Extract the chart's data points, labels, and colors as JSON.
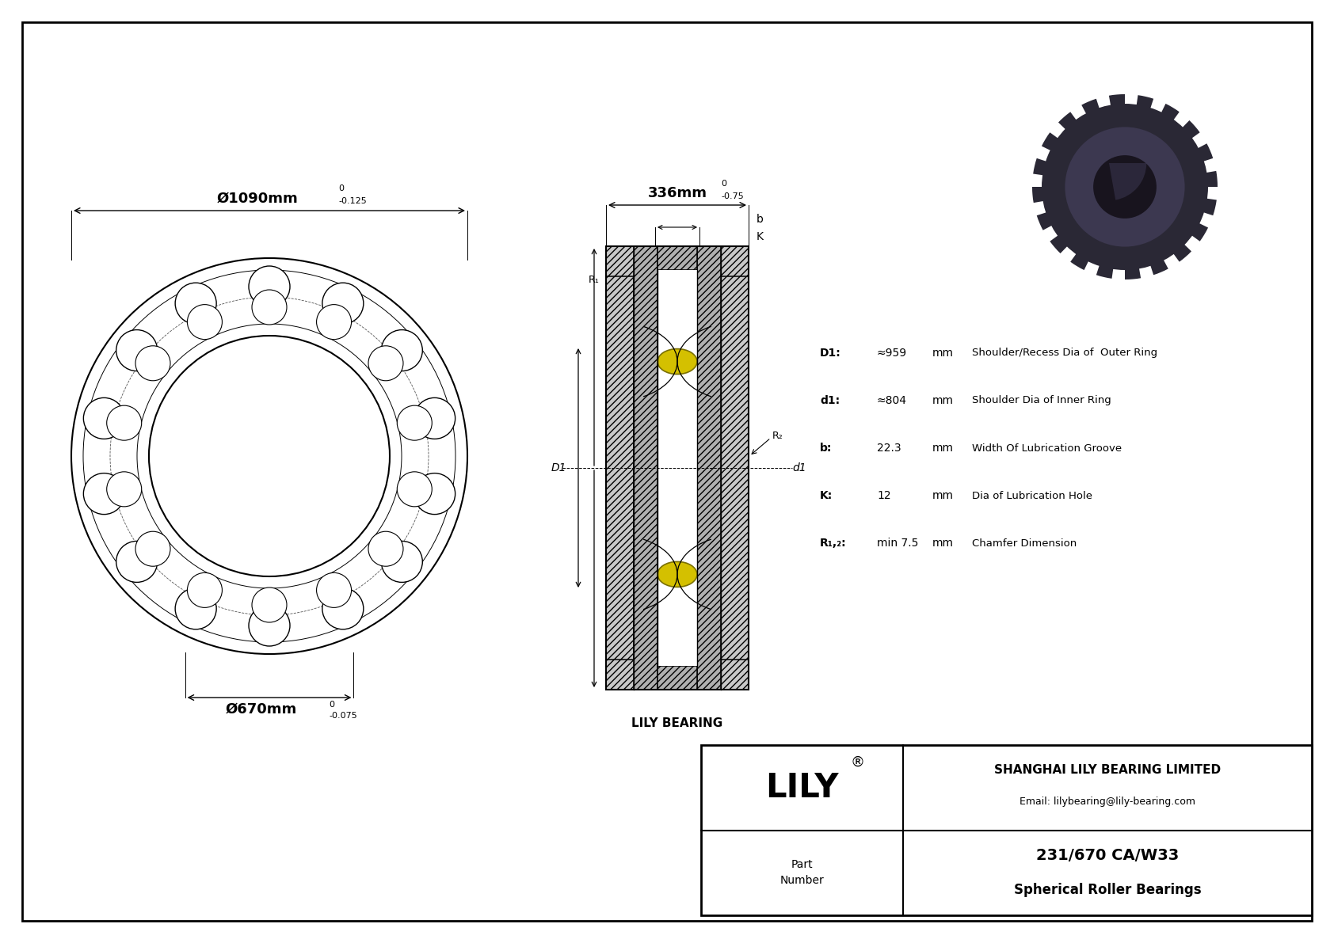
{
  "bg_color": "#ffffff",
  "outer_dim_label": "Ø1090mm",
  "outer_tol_top": "0",
  "outer_tol_bot": "-0.125",
  "inner_dim_label": "Ø670mm",
  "inner_tol_top": "0",
  "inner_tol_bot": "-0.075",
  "width_dim_label": "336mm",
  "width_tol_top": "0",
  "width_tol_bot": "-0.75",
  "params": [
    {
      "label": "D1:",
      "value": "≈959",
      "unit": "mm",
      "desc": "Shoulder/Recess Dia of  Outer Ring"
    },
    {
      "label": "d1:",
      "value": "≈804",
      "unit": "mm",
      "desc": "Shoulder Dia of Inner Ring"
    },
    {
      "label": "b:",
      "value": "22.3",
      "unit": "mm",
      "desc": "Width Of Lubrication Groove"
    },
    {
      "label": "K:",
      "value": "12",
      "unit": "mm",
      "desc": "Dia of Lubrication Hole"
    },
    {
      "label": "R₁,₂:",
      "value": "min 7.5",
      "unit": "mm",
      "desc": "Chamfer Dimension"
    }
  ],
  "company": "SHANGHAI LILY BEARING LIMITED",
  "email": "Email: lilybearing@lily-bearing.com",
  "part_label": "Part\nNumber",
  "part_number": "231/670 CA/W33",
  "part_type": "Spherical Roller Bearings",
  "lily_label": "LILY",
  "reg_symbol": "®",
  "lily_bearing_label": "LILY BEARING",
  "b_label": "b",
  "K_label": "K",
  "R1_label": "R₁",
  "R2_label": "R₂",
  "D1_label": "D1",
  "d1_label": "d1"
}
